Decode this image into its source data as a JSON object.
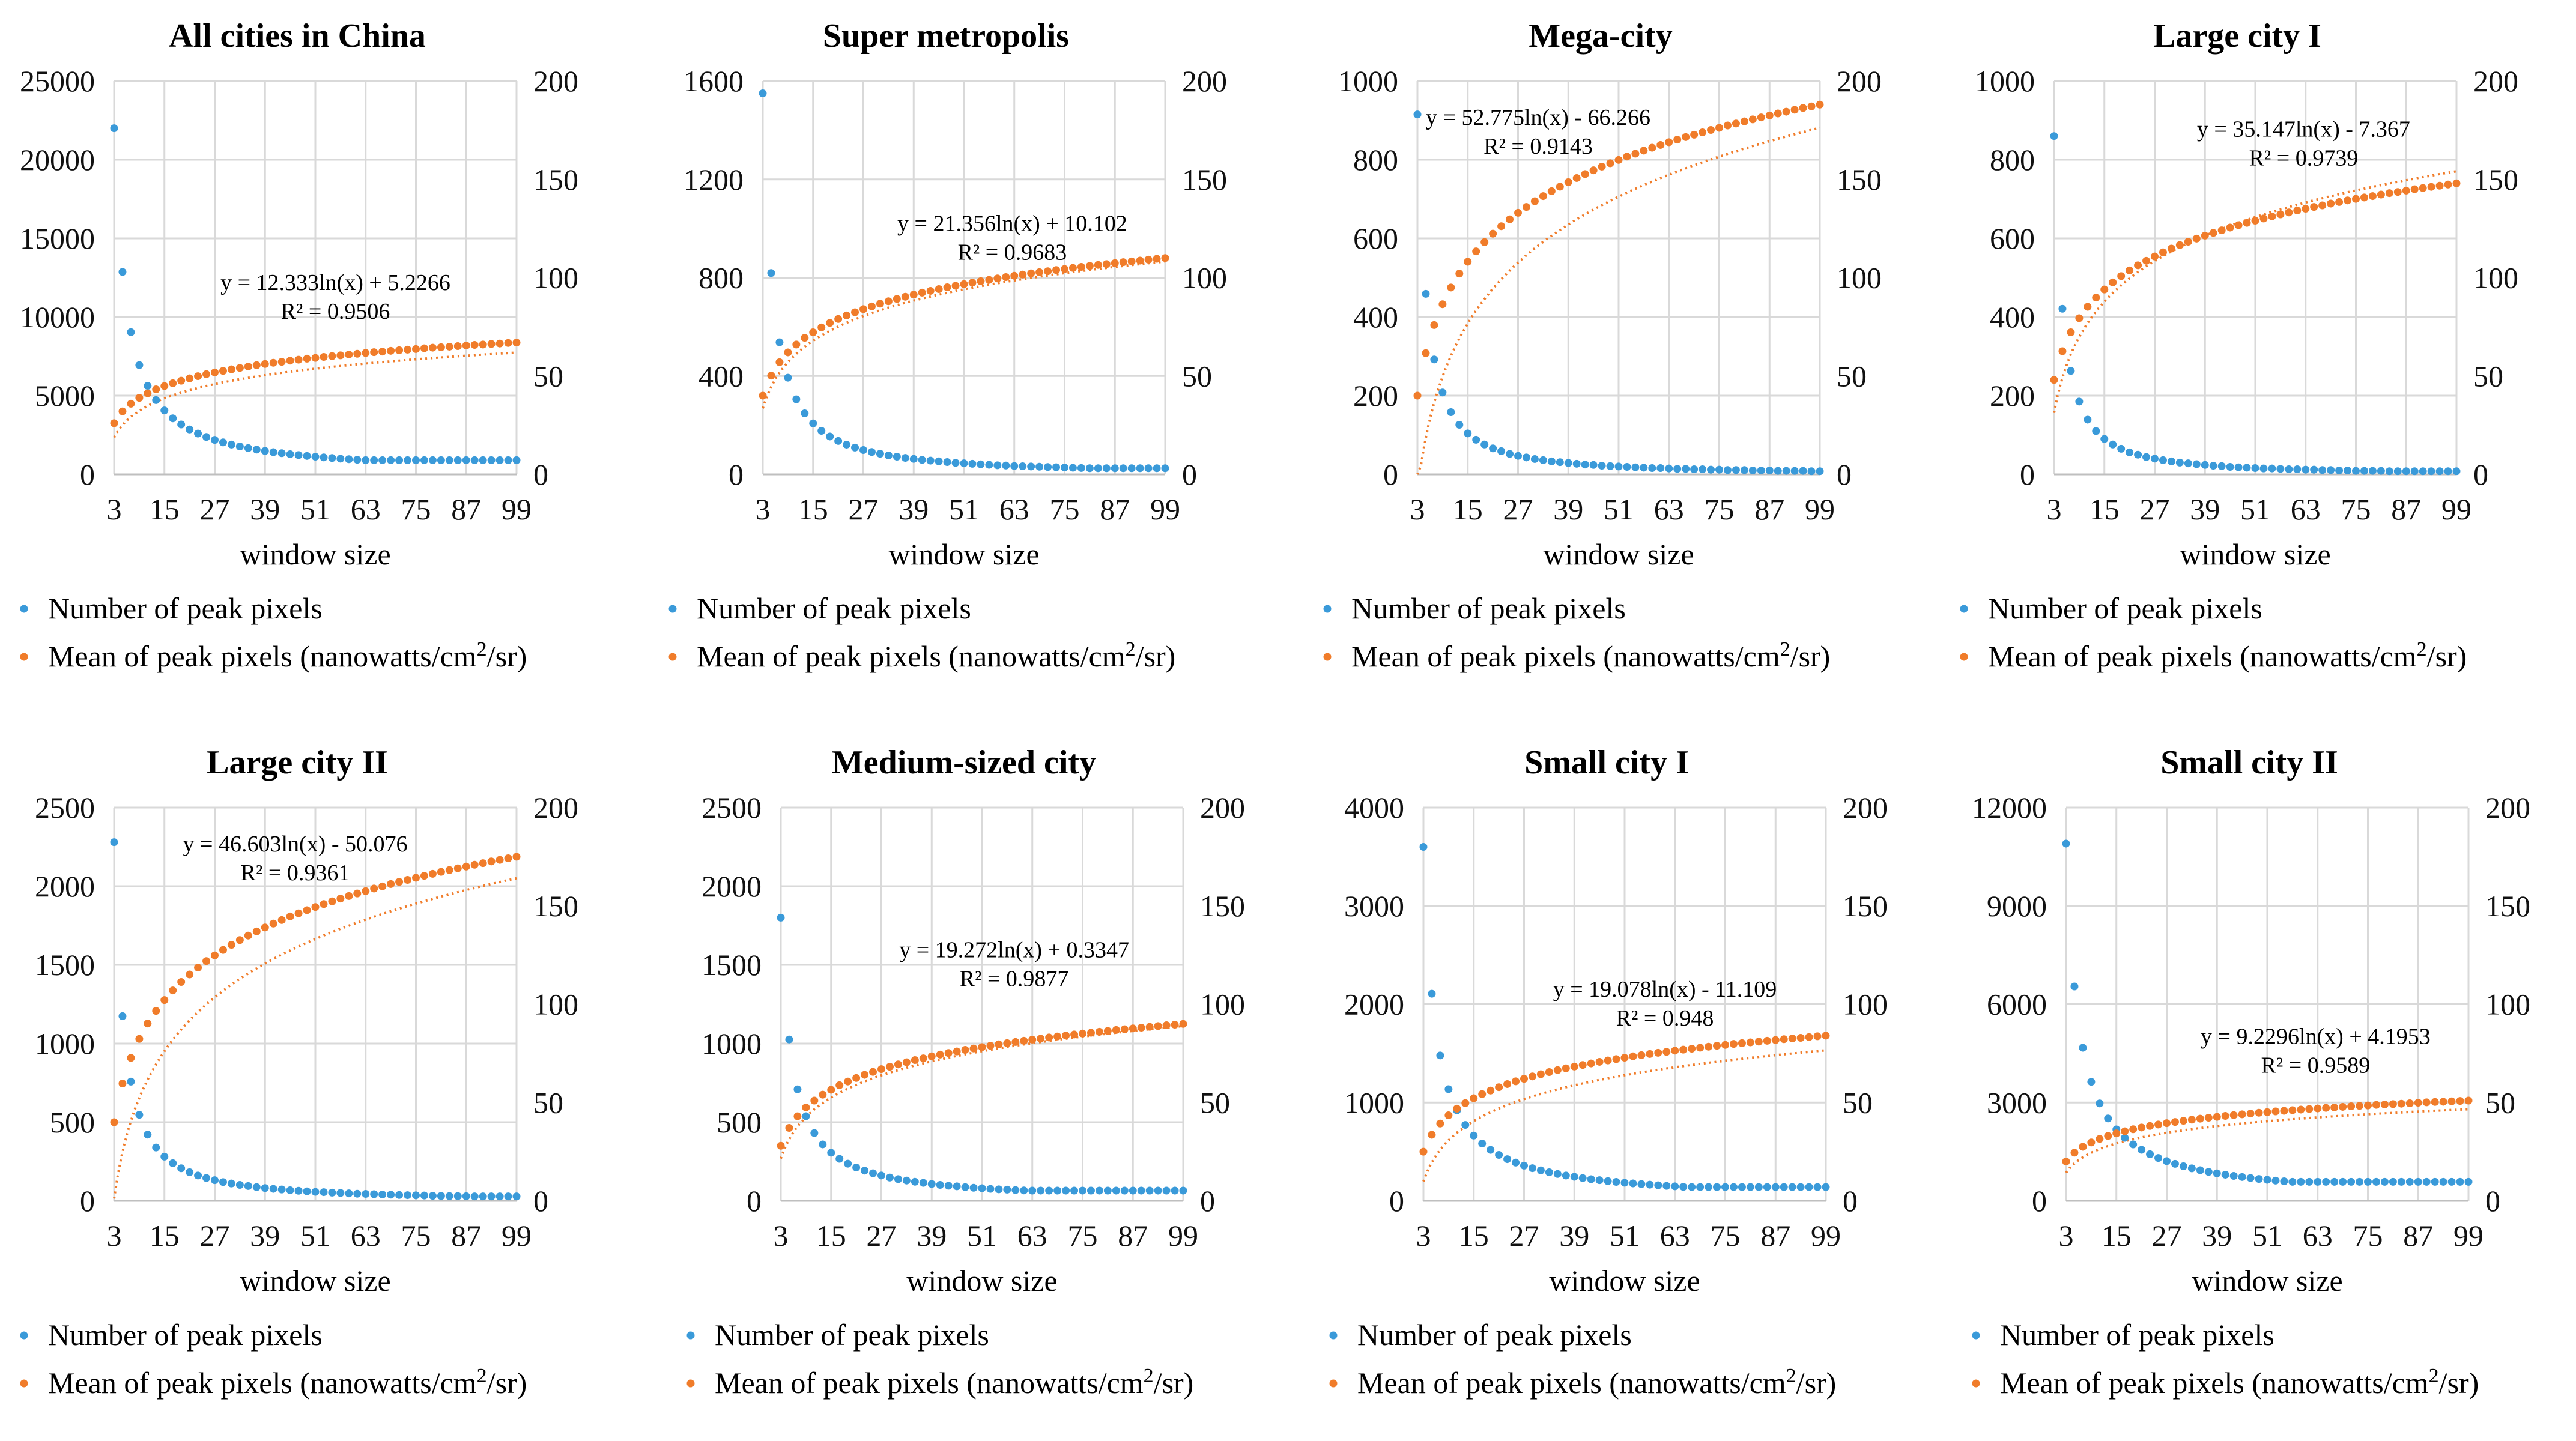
{
  "colors": {
    "count": "#3a9ad9",
    "mean": "#f07c2a",
    "grid": "#d9d9d9"
  },
  "common": {
    "xlabel": "window size",
    "xticks": [
      "3",
      "15",
      "27",
      "39",
      "51",
      "63",
      "75",
      "87",
      "99"
    ],
    "legend": [
      {
        "label": "Number of peak pixels"
      },
      {
        "label": "Mean of peak pixels (nanowatts/cm",
        "sup": "2",
        "tail": "/sr)"
      }
    ]
  },
  "chart_data": [
    {
      "type": "scatter",
      "title": "All cities in China",
      "xlabel": "window size",
      "x": [
        3,
        5,
        7,
        9,
        11,
        13,
        15,
        17,
        19,
        21,
        23,
        25,
        27,
        29,
        31,
        33,
        35,
        37,
        39,
        41,
        43,
        45,
        47,
        49,
        51,
        53,
        55,
        57,
        59,
        61,
        63,
        65,
        67,
        69,
        71,
        73,
        75,
        77,
        79,
        81,
        83,
        85,
        87,
        89,
        91,
        93,
        95,
        97,
        99
      ],
      "y_left_ticks": [
        "0",
        "5000",
        "10000",
        "15000",
        "20000",
        "25000"
      ],
      "y_left_range": [
        0,
        25000
      ],
      "y_right_ticks": [
        "0",
        "50",
        "100",
        "150",
        "200"
      ],
      "y_right_range": [
        0,
        200
      ],
      "series": [
        {
          "name": "Number of peak pixels",
          "axis": "left",
          "curve": "power",
          "first": 22000,
          "last": 900,
          "exp": 1.05
        },
        {
          "name": "Mean of peak pixels (nanowatts/cm2/sr)",
          "axis": "right",
          "curve": "log",
          "first": 26,
          "last": 67
        }
      ],
      "trendline": {
        "a": 12.333,
        "b": 5.2266,
        "equation": "y = 12.333ln(x) + 5.2266",
        "r2": "R² = 0.9506"
      }
    },
    {
      "type": "scatter",
      "title": "Super metropolis",
      "xlabel": "window size",
      "x": [
        3,
        5,
        7,
        9,
        11,
        13,
        15,
        17,
        19,
        21,
        23,
        25,
        27,
        29,
        31,
        33,
        35,
        37,
        39,
        41,
        43,
        45,
        47,
        49,
        51,
        53,
        55,
        57,
        59,
        61,
        63,
        65,
        67,
        69,
        71,
        73,
        75,
        77,
        79,
        81,
        83,
        85,
        87,
        89,
        91,
        93,
        95,
        97,
        99
      ],
      "y_left_ticks": [
        "0",
        "400",
        "800",
        "1200",
        "1600"
      ],
      "y_left_range": [
        0,
        1600
      ],
      "y_right_ticks": [
        "0",
        "50",
        "100",
        "150",
        "200"
      ],
      "y_right_range": [
        0,
        200
      ],
      "series": [
        {
          "name": "Number of peak pixels",
          "axis": "left",
          "curve": "power",
          "first": 1550,
          "last": 25,
          "exp": 1.25
        },
        {
          "name": "Mean of peak pixels (nanowatts/cm2/sr)",
          "axis": "right",
          "curve": "log",
          "first": 40,
          "last": 110
        }
      ],
      "trendline": {
        "a": 21.356,
        "b": 10.102,
        "equation": "y = 21.356ln(x) + 10.102",
        "r2": "R² = 0.9683"
      }
    },
    {
      "type": "scatter",
      "title": "Mega-city",
      "xlabel": "window size",
      "x": [
        3,
        5,
        7,
        9,
        11,
        13,
        15,
        17,
        19,
        21,
        23,
        25,
        27,
        29,
        31,
        33,
        35,
        37,
        39,
        41,
        43,
        45,
        47,
        49,
        51,
        53,
        55,
        57,
        59,
        61,
        63,
        65,
        67,
        69,
        71,
        73,
        75,
        77,
        79,
        81,
        83,
        85,
        87,
        89,
        91,
        93,
        95,
        97,
        99
      ],
      "y_left_ticks": [
        "0",
        "200",
        "400",
        "600",
        "800",
        "1000"
      ],
      "y_left_range": [
        0,
        1000
      ],
      "y_right_ticks": [
        "0",
        "50",
        "100",
        "150",
        "200"
      ],
      "y_right_range": [
        0,
        200
      ],
      "series": [
        {
          "name": "Number of peak pixels",
          "axis": "left",
          "curve": "power",
          "first": 915,
          "last": 8,
          "exp": 1.35
        },
        {
          "name": "Mean of peak pixels (nanowatts/cm2/sr)",
          "axis": "right",
          "curve": "log",
          "first": 40,
          "last": 188
        }
      ],
      "trendline": {
        "a": 52.775,
        "b": -66.266,
        "equation": "y = 52.775ln(x) - 66.266",
        "r2": "R² = 0.9143"
      }
    },
    {
      "type": "scatter",
      "title": "Large city I",
      "xlabel": "window size",
      "x": [
        3,
        5,
        7,
        9,
        11,
        13,
        15,
        17,
        19,
        21,
        23,
        25,
        27,
        29,
        31,
        33,
        35,
        37,
        39,
        41,
        43,
        45,
        47,
        49,
        51,
        53,
        55,
        57,
        59,
        61,
        63,
        65,
        67,
        69,
        71,
        73,
        75,
        77,
        79,
        81,
        83,
        85,
        87,
        89,
        91,
        93,
        95,
        97,
        99
      ],
      "y_left_ticks": [
        "0",
        "200",
        "400",
        "600",
        "800",
        "1000"
      ],
      "y_left_range": [
        0,
        1000
      ],
      "y_right_ticks": [
        "0",
        "50",
        "100",
        "150",
        "200"
      ],
      "y_right_range": [
        0,
        200
      ],
      "series": [
        {
          "name": "Number of peak pixels",
          "axis": "left",
          "curve": "power",
          "first": 860,
          "last": 8,
          "exp": 1.4
        },
        {
          "name": "Mean of peak pixels (nanowatts/cm2/sr)",
          "axis": "right",
          "curve": "log",
          "first": 48,
          "last": 148
        }
      ],
      "trendline": {
        "a": 35.147,
        "b": -7.367,
        "equation": "y = 35.147ln(x) - 7.367",
        "r2": "R² = 0.9739"
      }
    },
    {
      "type": "scatter",
      "title": "Large city II",
      "xlabel": "window size",
      "x": [
        3,
        5,
        7,
        9,
        11,
        13,
        15,
        17,
        19,
        21,
        23,
        25,
        27,
        29,
        31,
        33,
        35,
        37,
        39,
        41,
        43,
        45,
        47,
        49,
        51,
        53,
        55,
        57,
        59,
        61,
        63,
        65,
        67,
        69,
        71,
        73,
        75,
        77,
        79,
        81,
        83,
        85,
        87,
        89,
        91,
        93,
        95,
        97,
        99
      ],
      "y_left_ticks": [
        "0",
        "500",
        "1000",
        "1500",
        "2000",
        "2500"
      ],
      "y_left_range": [
        0,
        2500
      ],
      "y_right_ticks": [
        "0",
        "50",
        "100",
        "150",
        "200"
      ],
      "y_right_range": [
        0,
        200
      ],
      "series": [
        {
          "name": "Number of peak pixels",
          "axis": "left",
          "curve": "power",
          "first": 2280,
          "last": 28,
          "exp": 1.3
        },
        {
          "name": "Mean of peak pixels (nanowatts/cm2/sr)",
          "axis": "right",
          "curve": "log",
          "first": 40,
          "last": 175
        }
      ],
      "trendline": {
        "a": 46.603,
        "b": -50.076,
        "equation": "y = 46.603ln(x) - 50.076",
        "r2": "R² = 0.9361"
      }
    },
    {
      "type": "scatter",
      "title": "Medium-sized city",
      "xlabel": "window size",
      "x": [
        3,
        5,
        7,
        9,
        11,
        13,
        15,
        17,
        19,
        21,
        23,
        25,
        27,
        29,
        31,
        33,
        35,
        37,
        39,
        41,
        43,
        45,
        47,
        49,
        51,
        53,
        55,
        57,
        59,
        61,
        63,
        65,
        67,
        69,
        71,
        73,
        75,
        77,
        79,
        81,
        83,
        85,
        87,
        89,
        91,
        93,
        95,
        97,
        99
      ],
      "y_left_ticks": [
        "0",
        "500",
        "1000",
        "1500",
        "2000",
        "2500"
      ],
      "y_left_range": [
        0,
        2500
      ],
      "y_right_ticks": [
        "0",
        "50",
        "100",
        "150",
        "200"
      ],
      "y_right_range": [
        0,
        200
      ],
      "series": [
        {
          "name": "Number of peak pixels",
          "axis": "left",
          "curve": "power",
          "first": 1800,
          "last": 65,
          "exp": 1.1
        },
        {
          "name": "Mean of peak pixels (nanowatts/cm2/sr)",
          "axis": "right",
          "curve": "log",
          "first": 28,
          "last": 90
        }
      ],
      "trendline": {
        "a": 19.272,
        "b": 0.3347,
        "equation": "y = 19.272ln(x) + 0.3347",
        "r2": "R² = 0.9877"
      }
    },
    {
      "type": "scatter",
      "title": "Small city I",
      "xlabel": "window size",
      "x": [
        3,
        5,
        7,
        9,
        11,
        13,
        15,
        17,
        19,
        21,
        23,
        25,
        27,
        29,
        31,
        33,
        35,
        37,
        39,
        41,
        43,
        45,
        47,
        49,
        51,
        53,
        55,
        57,
        59,
        61,
        63,
        65,
        67,
        69,
        71,
        73,
        75,
        77,
        79,
        81,
        83,
        85,
        87,
        89,
        91,
        93,
        95,
        97,
        99
      ],
      "y_left_ticks": [
        "0",
        "1000",
        "2000",
        "3000",
        "4000"
      ],
      "y_left_range": [
        0,
        4000
      ],
      "y_right_ticks": [
        "0",
        "50",
        "100",
        "150",
        "200"
      ],
      "y_right_range": [
        0,
        200
      ],
      "series": [
        {
          "name": "Number of peak pixels",
          "axis": "left",
          "curve": "power",
          "first": 3600,
          "last": 140,
          "exp": 1.05
        },
        {
          "name": "Mean of peak pixels (nanowatts/cm2/sr)",
          "axis": "right",
          "curve": "log",
          "first": 25,
          "last": 84
        }
      ],
      "trendline": {
        "a": 19.078,
        "b": -11.109,
        "equation": "y = 19.078ln(x) - 11.109",
        "r2": "R² = 0.948"
      }
    },
    {
      "type": "scatter",
      "title": "Small city II",
      "xlabel": "window size",
      "x": [
        3,
        5,
        7,
        9,
        11,
        13,
        15,
        17,
        19,
        21,
        23,
        25,
        27,
        29,
        31,
        33,
        35,
        37,
        39,
        41,
        43,
        45,
        47,
        49,
        51,
        53,
        55,
        57,
        59,
        61,
        63,
        65,
        67,
        69,
        71,
        73,
        75,
        77,
        79,
        81,
        83,
        85,
        87,
        89,
        91,
        93,
        95,
        97,
        99
      ],
      "y_left_ticks": [
        "0",
        "3000",
        "6000",
        "9000",
        "12000"
      ],
      "y_left_range": [
        0,
        12000
      ],
      "y_right_ticks": [
        "0",
        "50",
        "100",
        "150",
        "200"
      ],
      "y_right_range": [
        0,
        200
      ],
      "series": [
        {
          "name": "Number of peak pixels",
          "axis": "left",
          "curve": "power",
          "first": 10900,
          "last": 580,
          "exp": 1.0
        },
        {
          "name": "Mean of peak pixels (nanowatts/cm2/sr)",
          "axis": "right",
          "curve": "log",
          "first": 20,
          "last": 51
        }
      ],
      "trendline": {
        "a": 9.2296,
        "b": 4.1953,
        "equation": "y = 9.2296ln(x) + 4.1953",
        "r2": "R² = 0.9589"
      }
    }
  ]
}
